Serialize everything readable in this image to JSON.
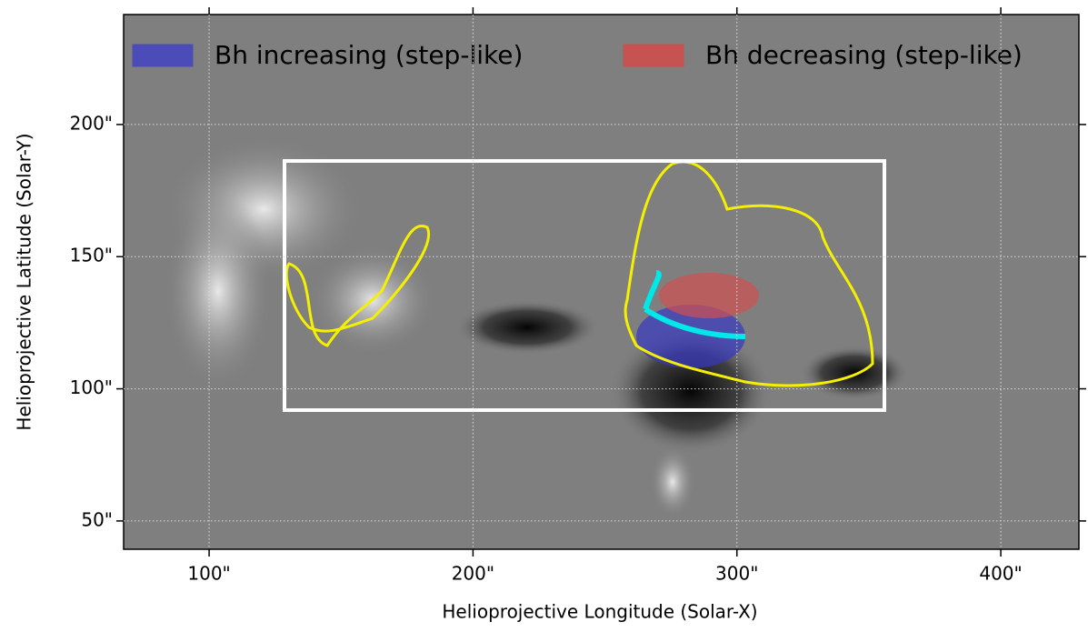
{
  "chart_data": {
    "type": "image",
    "xlabel": "Helioprojective Longitude (Solar-X)",
    "ylabel": "Helioprojective Latitude (Solar-Y)",
    "xlim": [
      67.6,
      429.6
    ],
    "ylim": [
      39.3,
      241.6
    ],
    "xticks": [
      {
        "value": 100,
        "label": "100\""
      },
      {
        "value": 200,
        "label": "200\""
      },
      {
        "value": 300,
        "label": "300\""
      },
      {
        "value": 400,
        "label": "400\""
      }
    ],
    "yticks": [
      {
        "value": 50,
        "label": "50\""
      },
      {
        "value": 100,
        "label": "100\""
      },
      {
        "value": 150,
        "label": "150\""
      },
      {
        "value": 200,
        "label": "200\""
      }
    ],
    "grid": true,
    "legend_position": "top",
    "series": [
      {
        "name": "Bh increasing (step-like)",
        "color": "#4040c8"
      },
      {
        "name": "Bh decreasing (step-like)",
        "color": "#d84848"
      }
    ]
  }
}
